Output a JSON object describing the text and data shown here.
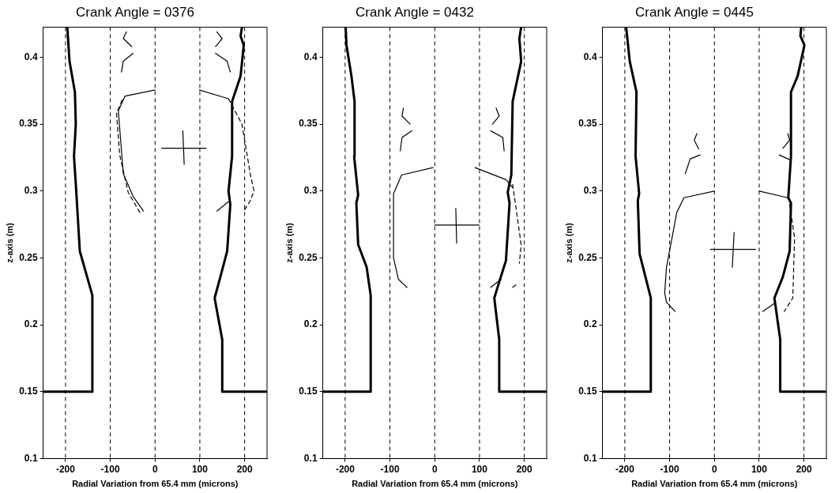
{
  "chart_data": [
    {
      "type": "line",
      "title": "Crank Angle = 0376",
      "xlabel": "Radial Variation from 65.4 mm (microns)",
      "ylabel": "z-axis (m)",
      "xlim": [
        -250,
        250
      ],
      "ylim": [
        0.1,
        0.4225
      ],
      "xticks": [
        -200,
        -100,
        0,
        100,
        200
      ],
      "yticks": [
        0.1,
        0.15,
        0.2,
        0.25,
        0.3,
        0.35,
        0.4
      ],
      "grid": false,
      "legend": false,
      "marker": "none",
      "ref_lines": [
        {
          "axis": "x",
          "value": -200,
          "line_style": "dashed",
          "color": "#000000"
        },
        {
          "axis": "x",
          "value": -100,
          "line_style": "dashed",
          "color": "#000000"
        },
        {
          "axis": "x",
          "value": 0,
          "line_style": "dashed",
          "color": "#000000"
        },
        {
          "axis": "x",
          "value": 100,
          "line_style": "dashed",
          "color": "#000000"
        },
        {
          "axis": "x",
          "value": 200,
          "line_style": "dashed",
          "color": "#000000"
        }
      ],
      "series": [
        {
          "color": "#000000",
          "line_style": "solid",
          "x": [
            -250,
            -140,
            -140,
            -168,
            -176,
            -181,
            -177,
            -179,
            -191,
            -196
          ],
          "values": [
            0.15,
            0.15,
            0.222,
            0.255,
            0.3,
            0.326,
            0.35,
            0.374,
            0.397,
            0.4225
          ]
        },
        {
          "color": "#000000",
          "line_style": "solid",
          "x": [
            250,
            150,
            150,
            133,
            146,
            161,
            168,
            164,
            172,
            172,
            191,
            198,
            191,
            194
          ],
          "values": [
            0.15,
            0.15,
            0.189,
            0.22,
            0.236,
            0.255,
            0.29,
            0.3,
            0.326,
            0.367,
            0.386,
            0.409,
            0.416,
            0.4225
          ]
        },
        {
          "color": "#000000",
          "line_style": "solid",
          "x": [
            -26,
            -49,
            -71,
            -82,
            -67,
            0
          ],
          "values": [
            0.285,
            0.296,
            0.313,
            0.36,
            0.371,
            0.3756
          ]
        },
        {
          "color": "#000000",
          "line_style": "dashed",
          "x": [
            -34,
            -60,
            -79,
            -86,
            -71
          ],
          "values": [
            0.284,
            0.299,
            0.327,
            0.358,
            0.37
          ]
        },
        {
          "color": "#000000",
          "line_style": "solid",
          "x": [
            99,
            164
          ],
          "values": [
            0.3756,
            0.369
          ]
        },
        {
          "color": "#000000",
          "line_style": "solid",
          "x": [
            138,
            164
          ],
          "values": [
            0.285,
            0.292
          ]
        },
        {
          "color": "#000000",
          "line_style": "dashed",
          "x": [
            164,
            194,
            213,
            221,
            213,
            198
          ],
          "values": [
            0.369,
            0.35,
            0.312,
            0.3,
            0.293,
            0.285
          ]
        },
        {
          "color": "#000000",
          "line_style": "solid",
          "x": [
            -49,
            -71,
            -75
          ],
          "values": [
            0.403,
            0.397,
            0.389
          ]
        },
        {
          "color": "#000000",
          "line_style": "solid",
          "x": [
            -64,
            -71,
            -52
          ],
          "values": [
            0.419,
            0.414,
            0.408
          ]
        },
        {
          "color": "#000000",
          "line_style": "solid",
          "x": [
            135,
            161,
            168
          ],
          "values": [
            0.403,
            0.397,
            0.389
          ]
        },
        {
          "color": "#000000",
          "line_style": "solid",
          "x": [
            138,
            150,
            135
          ],
          "values": [
            0.419,
            0.414,
            0.408
          ]
        },
        {
          "color": "#000000",
          "line_style": "solid",
          "x": [
            15,
            114
          ],
          "values": [
            0.332,
            0.332
          ]
        },
        {
          "color": "#000000",
          "line_style": "solid",
          "x": [
            62,
            65
          ],
          "values": [
            0.345,
            0.32
          ]
        }
      ]
    },
    {
      "type": "line",
      "title": "Crank Angle = 0432",
      "xlabel": "Radial Variation from 65.4 mm (microns)",
      "ylabel": "z-axis (m)",
      "xlim": [
        -250,
        250
      ],
      "ylim": [
        0.1,
        0.4225
      ],
      "xticks": [
        -200,
        -100,
        0,
        100,
        200
      ],
      "yticks": [
        0.1,
        0.15,
        0.2,
        0.25,
        0.3,
        0.35,
        0.4
      ],
      "grid": false,
      "legend": false,
      "marker": "none",
      "ref_lines": [
        {
          "axis": "x",
          "value": -200,
          "line_style": "dashed",
          "color": "#000000"
        },
        {
          "axis": "x",
          "value": -100,
          "line_style": "dashed",
          "color": "#000000"
        },
        {
          "axis": "x",
          "value": 0,
          "line_style": "dashed",
          "color": "#000000"
        },
        {
          "axis": "x",
          "value": 100,
          "line_style": "dashed",
          "color": "#000000"
        },
        {
          "axis": "x",
          "value": 200,
          "line_style": "dashed",
          "color": "#000000"
        }
      ],
      "series": [
        {
          "color": "#000000",
          "line_style": "solid",
          "x": [
            -250,
            -143,
            -143,
            -152,
            -171,
            -175,
            -171,
            -180,
            -179,
            -186,
            -197,
            -199
          ],
          "values": [
            0.15,
            0.15,
            0.222,
            0.243,
            0.26,
            0.291,
            0.297,
            0.326,
            0.367,
            0.386,
            0.409,
            0.4225
          ]
        },
        {
          "color": "#000000",
          "line_style": "solid",
          "x": [
            250,
            144,
            144,
            133,
            144,
            159,
            167,
            163,
            171,
            174,
            193,
            189,
            193
          ],
          "values": [
            0.15,
            0.15,
            0.189,
            0.22,
            0.232,
            0.248,
            0.291,
            0.299,
            0.312,
            0.367,
            0.397,
            0.414,
            0.4225
          ]
        },
        {
          "color": "#000000",
          "line_style": "solid",
          "x": [
            -62,
            -81,
            -92,
            -92,
            -74,
            -4
          ],
          "values": [
            0.228,
            0.234,
            0.25,
            0.298,
            0.312,
            0.3175
          ]
        },
        {
          "color": "#000000",
          "line_style": "solid",
          "x": [
            90,
            159,
            174
          ],
          "values": [
            0.3175,
            0.3085,
            0.3026
          ]
        },
        {
          "color": "#000000",
          "line_style": "solid",
          "x": [
            125,
            148
          ],
          "values": [
            0.228,
            0.234
          ]
        },
        {
          "color": "#000000",
          "line_style": "dashed",
          "x": [
            174,
            193,
            189
          ],
          "values": [
            0.305,
            0.26,
            0.246
          ]
        },
        {
          "color": "#000000",
          "line_style": "dashed",
          "x": [
            174,
            182
          ],
          "values": [
            0.228,
            0.23
          ]
        },
        {
          "color": "#000000",
          "line_style": "solid",
          "x": [
            -70,
            -73,
            -55
          ],
          "values": [
            0.362,
            0.356,
            0.35
          ]
        },
        {
          "color": "#000000",
          "line_style": "solid",
          "x": [
            -51,
            -73,
            -77
          ],
          "values": [
            0.345,
            0.34,
            0.33
          ]
        },
        {
          "color": "#000000",
          "line_style": "solid",
          "x": [
            137,
            144,
            129
          ],
          "values": [
            0.362,
            0.356,
            0.35
          ]
        },
        {
          "color": "#000000",
          "line_style": "solid",
          "x": [
            125,
            152,
            155
          ],
          "values": [
            0.345,
            0.34,
            0.33
          ]
        },
        {
          "color": "#000000",
          "line_style": "solid",
          "x": [
            0,
            99
          ],
          "values": [
            0.2746,
            0.2746
          ]
        },
        {
          "color": "#000000",
          "line_style": "solid",
          "x": [
            47,
            49
          ],
          "values": [
            0.287,
            0.261
          ]
        }
      ]
    },
    {
      "type": "line",
      "title": "Crank Angle = 0445",
      "xlabel": "Radial Variation from 65.4 mm (microns)",
      "ylabel": "z-axis (m)",
      "xlim": [
        -250,
        250
      ],
      "ylim": [
        0.1,
        0.4225
      ],
      "xticks": [
        -200,
        -100,
        0,
        100,
        200
      ],
      "yticks": [
        0.1,
        0.15,
        0.2,
        0.25,
        0.3,
        0.35,
        0.4
      ],
      "grid": false,
      "legend": false,
      "marker": "none",
      "ref_lines": [
        {
          "axis": "x",
          "value": -200,
          "line_style": "dashed",
          "color": "#000000"
        },
        {
          "axis": "x",
          "value": -100,
          "line_style": "dashed",
          "color": "#000000"
        },
        {
          "axis": "x",
          "value": 0,
          "line_style": "dashed",
          "color": "#000000"
        },
        {
          "axis": "x",
          "value": 100,
          "line_style": "dashed",
          "color": "#000000"
        },
        {
          "axis": "x",
          "value": 200,
          "line_style": "dashed",
          "color": "#000000"
        }
      ],
      "series": [
        {
          "color": "#000000",
          "line_style": "solid",
          "x": [
            -250,
            -142,
            -142,
            -167,
            -171,
            -168,
            -176,
            -174,
            -189,
            -197
          ],
          "values": [
            0.15,
            0.15,
            0.22,
            0.253,
            0.293,
            0.298,
            0.326,
            0.374,
            0.397,
            0.4225
          ]
        },
        {
          "color": "#000000",
          "line_style": "solid",
          "x": [
            250,
            147,
            147,
            134,
            153,
            168,
            171,
            165,
            171,
            171,
            186,
            201,
            192,
            194
          ],
          "values": [
            0.15,
            0.15,
            0.189,
            0.22,
            0.236,
            0.255,
            0.291,
            0.295,
            0.326,
            0.374,
            0.386,
            0.409,
            0.416,
            0.4225
          ]
        },
        {
          "color": "#000000",
          "line_style": "solid",
          "x": [
            -88,
            -107,
            -111,
            -107,
            -84,
            -68,
            0
          ],
          "values": [
            0.21,
            0.217,
            0.224,
            0.243,
            0.284,
            0.295,
            0.3
          ]
        },
        {
          "color": "#000000",
          "line_style": "solid",
          "x": [
            100,
            164
          ],
          "values": [
            0.3,
            0.295
          ]
        },
        {
          "color": "#000000",
          "line_style": "solid",
          "x": [
            108,
            134
          ],
          "values": [
            0.21,
            0.216
          ]
        },
        {
          "color": "#000000",
          "line_style": "dashed",
          "x": [
            168,
            179,
            175,
            156
          ],
          "values": [
            0.29,
            0.265,
            0.22,
            0.21
          ]
        },
        {
          "color": "#000000",
          "line_style": "solid",
          "x": [
            -39,
            -45,
            -35
          ],
          "values": [
            0.343,
            0.338,
            0.3315
          ]
        },
        {
          "color": "#000000",
          "line_style": "solid",
          "x": [
            -32,
            -54,
            -65
          ],
          "values": [
            0.327,
            0.324,
            0.313
          ]
        },
        {
          "color": "#000000",
          "line_style": "solid",
          "x": [
            164,
            168,
            153
          ],
          "values": [
            0.343,
            0.338,
            0.332
          ]
        },
        {
          "color": "#000000",
          "line_style": "solid",
          "x": [
            145,
            171
          ],
          "values": [
            0.327,
            0.323
          ]
        },
        {
          "color": "#000000",
          "line_style": "solid",
          "x": [
            -9,
            92
          ],
          "values": [
            0.2564,
            0.2564
          ]
        },
        {
          "color": "#000000",
          "line_style": "solid",
          "x": [
            44,
            40
          ],
          "values": [
            0.269,
            0.243
          ]
        }
      ]
    }
  ]
}
